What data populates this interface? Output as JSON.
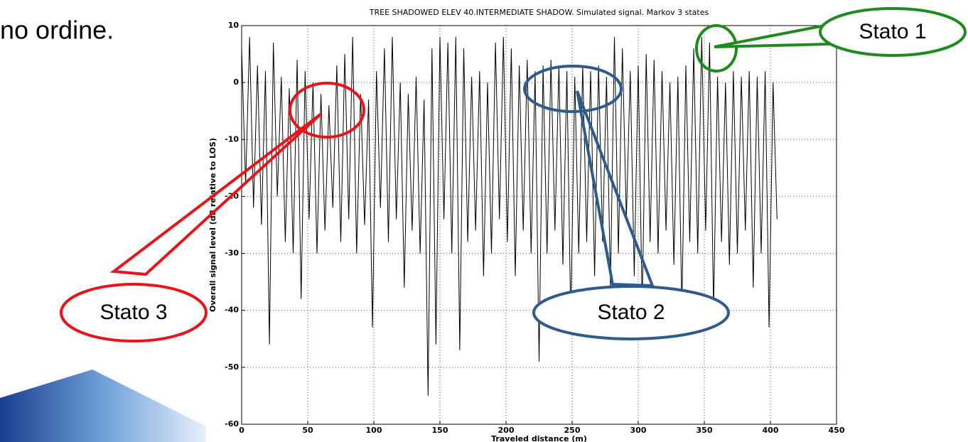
{
  "slide_text": "no ordine.",
  "chart_data": {
    "type": "line",
    "title": "TREE SHADOWED ELEV 40.INTERMEDIATE SHADOW. Simulated signal. Markov 3 states",
    "x_label": "Traveled distance (m)",
    "y_label": "Overall signal level (dB relative to LOS)",
    "xlim": [
      0,
      450
    ],
    "xticks": [
      0,
      50,
      100,
      150,
      200,
      250,
      300,
      350,
      400,
      450
    ],
    "ylim": [
      -60,
      10
    ],
    "yticks": [
      -60,
      -50,
      -40,
      -30,
      -20,
      -10,
      0,
      10
    ],
    "grid": true,
    "annotations": [
      "Stato 1",
      "Stato 2",
      "Stato 3"
    ],
    "series": [
      {
        "color": "#000000",
        "x": [
          0,
          3,
          6,
          9,
          12,
          15,
          18,
          21,
          24,
          27,
          30,
          33,
          36,
          39,
          42,
          45,
          48,
          51,
          54,
          57,
          60,
          63,
          66,
          69,
          72,
          75,
          78,
          81,
          84,
          87,
          90,
          93,
          96,
          99,
          102,
          105,
          108,
          111,
          114,
          117,
          120,
          123,
          126,
          129,
          132,
          135,
          138,
          141,
          144,
          147,
          150,
          153,
          156,
          159,
          162,
          165,
          168,
          171,
          174,
          177,
          180,
          183,
          186,
          189,
          192,
          195,
          198,
          201,
          204,
          207,
          210,
          213,
          216,
          219,
          222,
          225,
          228,
          231,
          234,
          237,
          240,
          243,
          246,
          249,
          252,
          255,
          258,
          261,
          264,
          267,
          270,
          273,
          276,
          279,
          282,
          285,
          288,
          291,
          294,
          297,
          300,
          303,
          306,
          309,
          312,
          315,
          318,
          321,
          324,
          327,
          330,
          333,
          336,
          339,
          342,
          345,
          348,
          351,
          354,
          357,
          360,
          363,
          366,
          369,
          372,
          375,
          378,
          381,
          384,
          387,
          390,
          393,
          396,
          399,
          402,
          405
        ],
        "values": [
          6,
          -18,
          8,
          -22,
          3,
          -25,
          2,
          -46,
          7,
          -20,
          1,
          -28,
          -1,
          -30,
          4,
          -38,
          2,
          -24,
          0,
          -30,
          -2,
          -26,
          -4,
          -22,
          3,
          -28,
          5,
          -24,
          8,
          -30,
          -2,
          -25,
          -3,
          -43,
          2,
          -22,
          6,
          -28,
          8,
          -24,
          0,
          -36,
          -2,
          -26,
          1,
          -30,
          -3,
          -55,
          6,
          -46,
          8,
          -24,
          7,
          -30,
          8,
          -47,
          6,
          -28,
          1,
          -26,
          2,
          -34,
          0,
          -30,
          7,
          -24,
          8,
          -28,
          6,
          -34,
          3,
          -26,
          4,
          -30,
          2,
          -49,
          3,
          -30,
          4,
          -26,
          3,
          -32,
          2,
          -42,
          1,
          -30,
          3,
          -28,
          2,
          -34,
          3,
          -28,
          1,
          -36,
          8,
          -30,
          6,
          -24,
          2,
          -34,
          3,
          -40,
          5,
          -28,
          4,
          -30,
          2,
          -26,
          0,
          -32,
          1,
          -40,
          3,
          -28,
          6,
          -30,
          8,
          -26,
          7,
          -40,
          1,
          -28,
          0,
          -32,
          2,
          -30,
          1,
          -26,
          2,
          -36,
          1,
          -30,
          2,
          -43,
          0,
          -24
        ]
      }
    ]
  }
}
